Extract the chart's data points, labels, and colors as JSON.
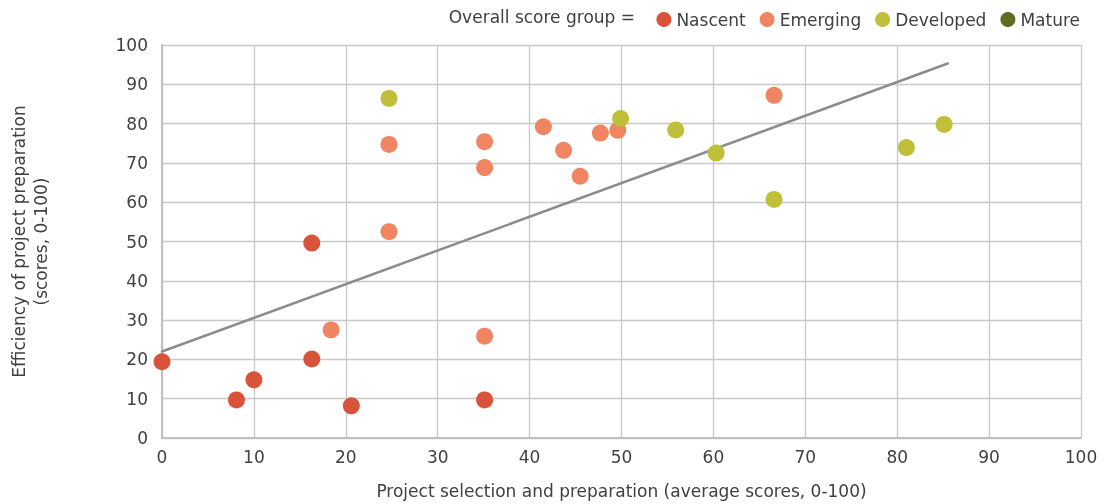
{
  "chart_data": {
    "type": "scatter",
    "xlabel": "Project selection and preparation (average scores, 0-100)",
    "ylabel": "Efficiency of project preparation\n(scores, 0-100)",
    "legend_title": "Overall score group =",
    "xlim": [
      0,
      100
    ],
    "xticks": [
      0,
      10,
      20,
      30,
      40,
      50,
      60,
      70,
      80,
      90,
      100
    ],
    "ylim": [
      0,
      100
    ],
    "yticks": [
      0,
      10,
      20,
      30,
      40,
      50,
      60,
      70,
      80,
      90,
      100
    ],
    "grid": true,
    "legend": "top right",
    "marker": "circle",
    "series": [
      {
        "name": "Nascent",
        "color": "#d9533b",
        "x": [
          0,
          8.1,
          10,
          16.3,
          16.3,
          20.6,
          35.1
        ],
        "values": [
          19.4,
          9.7,
          14.8,
          49.6,
          20.1,
          8.2,
          9.7
        ]
      },
      {
        "name": "Emerging",
        "color": "#ef8561",
        "x": [
          24.7,
          24.7,
          18.4,
          35.1,
          35.1,
          35.1,
          41.5,
          43.7,
          45.5,
          47.7,
          49.6,
          66.6
        ],
        "values": [
          74.7,
          52.5,
          27.5,
          75.4,
          68.8,
          25.9,
          79.2,
          73.2,
          66.6,
          77.6,
          78.3,
          87.2
        ]
      },
      {
        "name": "Developed",
        "color": "#bfbf3a",
        "x": [
          24.7,
          49.9,
          55.9,
          60.3,
          66.6,
          81,
          85.1
        ],
        "values": [
          86.4,
          81.3,
          78.4,
          72.5,
          60.7,
          73.9,
          79.8
        ]
      },
      {
        "name": "Mature",
        "color": "#5f6b22"
      },
      {
        "type": "line",
        "color": "#8c8c8c",
        "x": [
          0,
          85.5
        ],
        "values": [
          22,
          95.3
        ],
        "marker": "none",
        "line_style": "solid"
      }
    ]
  }
}
